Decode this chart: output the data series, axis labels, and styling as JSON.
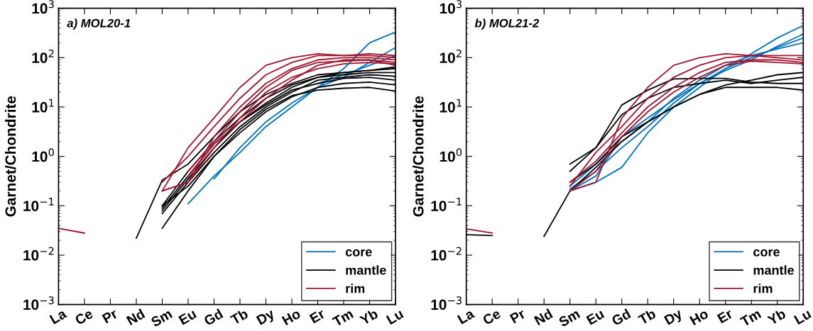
{
  "chart_data": [
    {
      "type": "line",
      "title": "a) MOL20-1",
      "ylabel": "Garnet/Chondrite",
      "log": true,
      "legend": "bottom right",
      "grid": false,
      "categories": [
        "La",
        "Ce",
        "Pr",
        "Nd",
        "Sm",
        "Eu",
        "Gd",
        "Tb",
        "Dy",
        "Ho",
        "Er",
        "Tm",
        "Yb",
        "Lu"
      ],
      "ylim": [
        0.001,
        1000
      ],
      "yticks": [
        {
          "value": 0.001,
          "label": "10$^{−3}$"
        },
        {
          "value": 0.01,
          "label": "10$^{−2}$"
        },
        {
          "value": 0.1,
          "label": "10$^{−1}$"
        },
        {
          "value": 1,
          "label": "10$^{0}$"
        },
        {
          "value": 10,
          "label": "10$^{1}$"
        },
        {
          "value": 100,
          "label": "10$^{2}$"
        },
        {
          "value": 1000,
          "label": "10$^{3}$"
        }
      ],
      "series": [
        {
          "name": "core",
          "color": "#0072bd",
          "values": [
            null,
            null,
            null,
            null,
            null,
            0.11,
            0.4,
            1.2,
            4,
            10,
            25,
            60,
            200,
            330
          ]
        },
        {
          "color": "#0072bd",
          "values": [
            null,
            null,
            null,
            null,
            null,
            null,
            0.35,
            1.5,
            5,
            12,
            25,
            40,
            80,
            160
          ]
        },
        {
          "color": "#0072bd",
          "values": [
            null,
            null,
            null,
            null,
            null,
            null,
            null,
            null,
            null,
            null,
            30,
            45,
            70,
            110
          ]
        },
        {
          "name": "mantle",
          "color": "#000000",
          "values": [
            null,
            null,
            null,
            0.022,
            0.33,
            0.7,
            2.5,
            8,
            18,
            30,
            45,
            50,
            55,
            60
          ]
        },
        {
          "color": "#000000",
          "values": [
            null,
            null,
            null,
            null,
            0.1,
            0.5,
            2,
            6,
            15,
            28,
            40,
            50,
            55,
            65
          ]
        },
        {
          "color": "#000000",
          "values": [
            null,
            null,
            null,
            null,
            0.08,
            0.35,
            1.5,
            5,
            12,
            25,
            40,
            45,
            50,
            50
          ]
        },
        {
          "color": "#000000",
          "values": [
            null,
            null,
            null,
            null,
            0.07,
            0.3,
            1.2,
            4,
            10,
            20,
            35,
            40,
            45,
            42
          ]
        },
        {
          "color": "#000000",
          "values": [
            null,
            null,
            null,
            null,
            0.09,
            0.4,
            1.8,
            5,
            11,
            22,
            30,
            38,
            40,
            35
          ]
        },
        {
          "color": "#000000",
          "values": [
            null,
            null,
            null,
            null,
            0.1,
            0.25,
            1,
            3,
            8,
            16,
            25,
            30,
            32,
            28
          ]
        },
        {
          "color": "#000000",
          "values": [
            null,
            null,
            null,
            null,
            0.035,
            0.2,
            1,
            3.5,
            9,
            17,
            22,
            24,
            25,
            21
          ]
        },
        {
          "name": "rim",
          "color": "#a2142f",
          "values": [
            0.035,
            0.028,
            null,
            null,
            null,
            null,
            null,
            null,
            null,
            null,
            null,
            null,
            null,
            null
          ]
        },
        {
          "color": "#a2142f",
          "values": [
            null,
            null,
            null,
            null,
            0.2,
            1.5,
            6,
            25,
            70,
            100,
            120,
            110,
            110,
            100
          ]
        },
        {
          "color": "#a2142f",
          "values": [
            null,
            null,
            null,
            null,
            0.3,
            1.0,
            4,
            15,
            45,
            80,
            110,
            110,
            120,
            110
          ]
        },
        {
          "color": "#a2142f",
          "values": [
            null,
            null,
            null,
            null,
            0.2,
            0.3,
            2.5,
            10,
            30,
            60,
            90,
            100,
            100,
            90
          ]
        },
        {
          "color": "#a2142f",
          "values": [
            null,
            null,
            null,
            null,
            null,
            0.5,
            2,
            8,
            25,
            55,
            80,
            85,
            90,
            80
          ]
        },
        {
          "color": "#a2142f",
          "values": [
            null,
            null,
            null,
            null,
            0.2,
            0.3,
            1.5,
            6,
            20,
            40,
            60,
            75,
            80,
            75
          ]
        },
        {
          "color": "#a2142f",
          "values": [
            null,
            null,
            null,
            null,
            null,
            0.4,
            1.8,
            5,
            15,
            35,
            70,
            90,
            90,
            70
          ]
        }
      ]
    },
    {
      "type": "line",
      "title": "b) MOL21-2",
      "ylabel": "Garnet/Chondrite",
      "log": true,
      "legend": "bottom right",
      "grid": false,
      "categories": [
        "La",
        "Ce",
        "Pr",
        "Nd",
        "Sm",
        "Eu",
        "Gd",
        "Tb",
        "Dy",
        "Ho",
        "Er",
        "Tm",
        "Yb",
        "Lu"
      ],
      "ylim": [
        0.001,
        1000
      ],
      "yticks": [
        {
          "value": 0.001,
          "label": "10$^{−3}$"
        },
        {
          "value": 0.01,
          "label": "10$^{−2}$"
        },
        {
          "value": 0.1,
          "label": "10$^{−1}$"
        },
        {
          "value": 1,
          "label": "10$^{0}$"
        },
        {
          "value": 10,
          "label": "10$^{1}$"
        },
        {
          "value": 100,
          "label": "10$^{2}$"
        },
        {
          "value": 1000,
          "label": "10$^{3}$"
        }
      ],
      "series": [
        {
          "name": "core",
          "color": "#0072bd",
          "values": [
            null,
            null,
            null,
            null,
            0.2,
            0.3,
            0.6,
            3,
            10,
            25,
            60,
            120,
            250,
            450
          ]
        },
        {
          "color": "#0072bd",
          "values": [
            null,
            null,
            null,
            null,
            0.22,
            0.5,
            1.5,
            4,
            12,
            30,
            60,
            100,
            160,
            250
          ]
        },
        {
          "color": "#0072bd",
          "values": [
            null,
            null,
            null,
            null,
            0.25,
            0.7,
            2,
            5,
            15,
            35,
            70,
            110,
            150,
            200
          ]
        },
        {
          "color": "#0072bd",
          "values": [
            null,
            null,
            null,
            null,
            0.2,
            0.4,
            2.5,
            6,
            14,
            30,
            55,
            90,
            170,
            300
          ]
        },
        {
          "name": "mantle",
          "color": "#000000",
          "values": [
            0.026,
            0.025,
            null,
            null,
            null,
            null,
            null,
            null,
            null,
            null,
            null,
            null,
            null,
            null
          ]
        },
        {
          "color": "#000000",
          "values": [
            null,
            null,
            null,
            0.024,
            0.2,
            0.6,
            2,
            5,
            10,
            18,
            28,
            35,
            45,
            50
          ]
        },
        {
          "color": "#000000",
          "values": [
            null,
            null,
            null,
            null,
            0.7,
            1.5,
            11,
            22,
            37,
            38,
            38,
            32,
            30,
            30
          ]
        },
        {
          "color": "#000000",
          "values": [
            null,
            null,
            null,
            null,
            0.5,
            1.5,
            7,
            15,
            25,
            30,
            35,
            30,
            35,
            40
          ]
        },
        {
          "color": "#000000",
          "values": [
            null,
            null,
            null,
            null,
            0.3,
            0.7,
            2.5,
            5,
            10,
            18,
            25,
            25,
            25,
            22
          ]
        },
        {
          "name": "rim",
          "color": "#a2142f",
          "values": [
            0.034,
            0.028,
            null,
            null,
            null,
            null,
            null,
            null,
            null,
            null,
            null,
            null,
            null,
            null
          ]
        },
        {
          "color": "#a2142f",
          "values": [
            null,
            null,
            null,
            null,
            0.2,
            0.3,
            6,
            25,
            70,
            100,
            120,
            110,
            110,
            110
          ]
        },
        {
          "color": "#a2142f",
          "values": [
            null,
            null,
            null,
            null,
            0.25,
            1.2,
            4,
            15,
            40,
            70,
            100,
            110,
            100,
            90
          ]
        },
        {
          "color": "#a2142f",
          "values": [
            null,
            null,
            null,
            null,
            0.3,
            0.8,
            3,
            10,
            25,
            50,
            80,
            90,
            90,
            80
          ]
        },
        {
          "color": "#a2142f",
          "values": [
            null,
            null,
            null,
            null,
            0.2,
            0.5,
            2.5,
            8,
            20,
            40,
            70,
            85,
            80,
            75
          ]
        }
      ]
    }
  ]
}
